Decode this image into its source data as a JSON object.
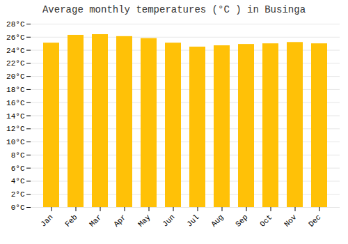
{
  "chart_data": {
    "type": "bar",
    "title": "Average monthly temperatures (°C ) in Businga",
    "categories": [
      "Jan",
      "Feb",
      "Mar",
      "Apr",
      "May",
      "Jun",
      "Jul",
      "Aug",
      "Sep",
      "Oct",
      "Nov",
      "Dec"
    ],
    "values": [
      25.1,
      26.3,
      26.4,
      26.1,
      25.8,
      25.1,
      24.5,
      24.7,
      24.9,
      25.0,
      25.2,
      25.0
    ],
    "color": "#FFC107",
    "ylim": [
      0,
      28
    ],
    "yticks": [
      {
        "value": 0,
        "label": "0°C"
      },
      {
        "value": 2,
        "label": "2°C"
      },
      {
        "value": 4,
        "label": "4°C"
      },
      {
        "value": 6,
        "label": "6°C"
      },
      {
        "value": 8,
        "label": "8°C"
      },
      {
        "value": 10,
        "label": "10°C"
      },
      {
        "value": 12,
        "label": "12°C"
      },
      {
        "value": 14,
        "label": "14°C"
      },
      {
        "value": 16,
        "label": "16°C"
      },
      {
        "value": 18,
        "label": "18°C"
      },
      {
        "value": 20,
        "label": "20°C"
      },
      {
        "value": 22,
        "label": "22°C"
      },
      {
        "value": 24,
        "label": "24°C"
      },
      {
        "value": 26,
        "label": "26°C"
      },
      {
        "value": 28,
        "label": "28°C"
      }
    ],
    "grid": true
  }
}
